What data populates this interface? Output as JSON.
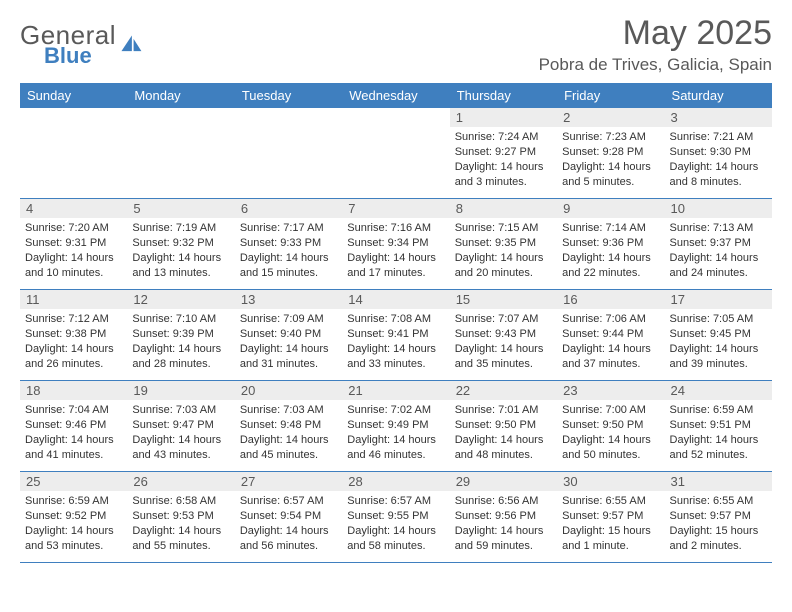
{
  "brand": {
    "general": "General",
    "blue": "Blue"
  },
  "title": "May 2025",
  "location": "Pobra de Trives, Galicia, Spain",
  "theme": {
    "header_bg": "#3f7fbf",
    "header_fg": "#ffffff",
    "daynum_bg": "#ededed",
    "daynum_fg": "#595959",
    "border": "#3f7fbf",
    "page_bg": "#ffffff",
    "text": "#333333",
    "title_color": "#595959"
  },
  "weekdays": [
    "Sunday",
    "Monday",
    "Tuesday",
    "Wednesday",
    "Thursday",
    "Friday",
    "Saturday"
  ],
  "weeks": [
    [
      null,
      null,
      null,
      null,
      {
        "n": "1",
        "sr": "7:24 AM",
        "ss": "9:27 PM",
        "dl": "14 hours and 3 minutes."
      },
      {
        "n": "2",
        "sr": "7:23 AM",
        "ss": "9:28 PM",
        "dl": "14 hours and 5 minutes."
      },
      {
        "n": "3",
        "sr": "7:21 AM",
        "ss": "9:30 PM",
        "dl": "14 hours and 8 minutes."
      }
    ],
    [
      {
        "n": "4",
        "sr": "7:20 AM",
        "ss": "9:31 PM",
        "dl": "14 hours and 10 minutes."
      },
      {
        "n": "5",
        "sr": "7:19 AM",
        "ss": "9:32 PM",
        "dl": "14 hours and 13 minutes."
      },
      {
        "n": "6",
        "sr": "7:17 AM",
        "ss": "9:33 PM",
        "dl": "14 hours and 15 minutes."
      },
      {
        "n": "7",
        "sr": "7:16 AM",
        "ss": "9:34 PM",
        "dl": "14 hours and 17 minutes."
      },
      {
        "n": "8",
        "sr": "7:15 AM",
        "ss": "9:35 PM",
        "dl": "14 hours and 20 minutes."
      },
      {
        "n": "9",
        "sr": "7:14 AM",
        "ss": "9:36 PM",
        "dl": "14 hours and 22 minutes."
      },
      {
        "n": "10",
        "sr": "7:13 AM",
        "ss": "9:37 PM",
        "dl": "14 hours and 24 minutes."
      }
    ],
    [
      {
        "n": "11",
        "sr": "7:12 AM",
        "ss": "9:38 PM",
        "dl": "14 hours and 26 minutes."
      },
      {
        "n": "12",
        "sr": "7:10 AM",
        "ss": "9:39 PM",
        "dl": "14 hours and 28 minutes."
      },
      {
        "n": "13",
        "sr": "7:09 AM",
        "ss": "9:40 PM",
        "dl": "14 hours and 31 minutes."
      },
      {
        "n": "14",
        "sr": "7:08 AM",
        "ss": "9:41 PM",
        "dl": "14 hours and 33 minutes."
      },
      {
        "n": "15",
        "sr": "7:07 AM",
        "ss": "9:43 PM",
        "dl": "14 hours and 35 minutes."
      },
      {
        "n": "16",
        "sr": "7:06 AM",
        "ss": "9:44 PM",
        "dl": "14 hours and 37 minutes."
      },
      {
        "n": "17",
        "sr": "7:05 AM",
        "ss": "9:45 PM",
        "dl": "14 hours and 39 minutes."
      }
    ],
    [
      {
        "n": "18",
        "sr": "7:04 AM",
        "ss": "9:46 PM",
        "dl": "14 hours and 41 minutes."
      },
      {
        "n": "19",
        "sr": "7:03 AM",
        "ss": "9:47 PM",
        "dl": "14 hours and 43 minutes."
      },
      {
        "n": "20",
        "sr": "7:03 AM",
        "ss": "9:48 PM",
        "dl": "14 hours and 45 minutes."
      },
      {
        "n": "21",
        "sr": "7:02 AM",
        "ss": "9:49 PM",
        "dl": "14 hours and 46 minutes."
      },
      {
        "n": "22",
        "sr": "7:01 AM",
        "ss": "9:50 PM",
        "dl": "14 hours and 48 minutes."
      },
      {
        "n": "23",
        "sr": "7:00 AM",
        "ss": "9:50 PM",
        "dl": "14 hours and 50 minutes."
      },
      {
        "n": "24",
        "sr": "6:59 AM",
        "ss": "9:51 PM",
        "dl": "14 hours and 52 minutes."
      }
    ],
    [
      {
        "n": "25",
        "sr": "6:59 AM",
        "ss": "9:52 PM",
        "dl": "14 hours and 53 minutes."
      },
      {
        "n": "26",
        "sr": "6:58 AM",
        "ss": "9:53 PM",
        "dl": "14 hours and 55 minutes."
      },
      {
        "n": "27",
        "sr": "6:57 AM",
        "ss": "9:54 PM",
        "dl": "14 hours and 56 minutes."
      },
      {
        "n": "28",
        "sr": "6:57 AM",
        "ss": "9:55 PM",
        "dl": "14 hours and 58 minutes."
      },
      {
        "n": "29",
        "sr": "6:56 AM",
        "ss": "9:56 PM",
        "dl": "14 hours and 59 minutes."
      },
      {
        "n": "30",
        "sr": "6:55 AM",
        "ss": "9:57 PM",
        "dl": "15 hours and 1 minute."
      },
      {
        "n": "31",
        "sr": "6:55 AM",
        "ss": "9:57 PM",
        "dl": "15 hours and 2 minutes."
      }
    ]
  ],
  "labels": {
    "sunrise": "Sunrise: ",
    "sunset": "Sunset: ",
    "daylight": "Daylight: "
  }
}
